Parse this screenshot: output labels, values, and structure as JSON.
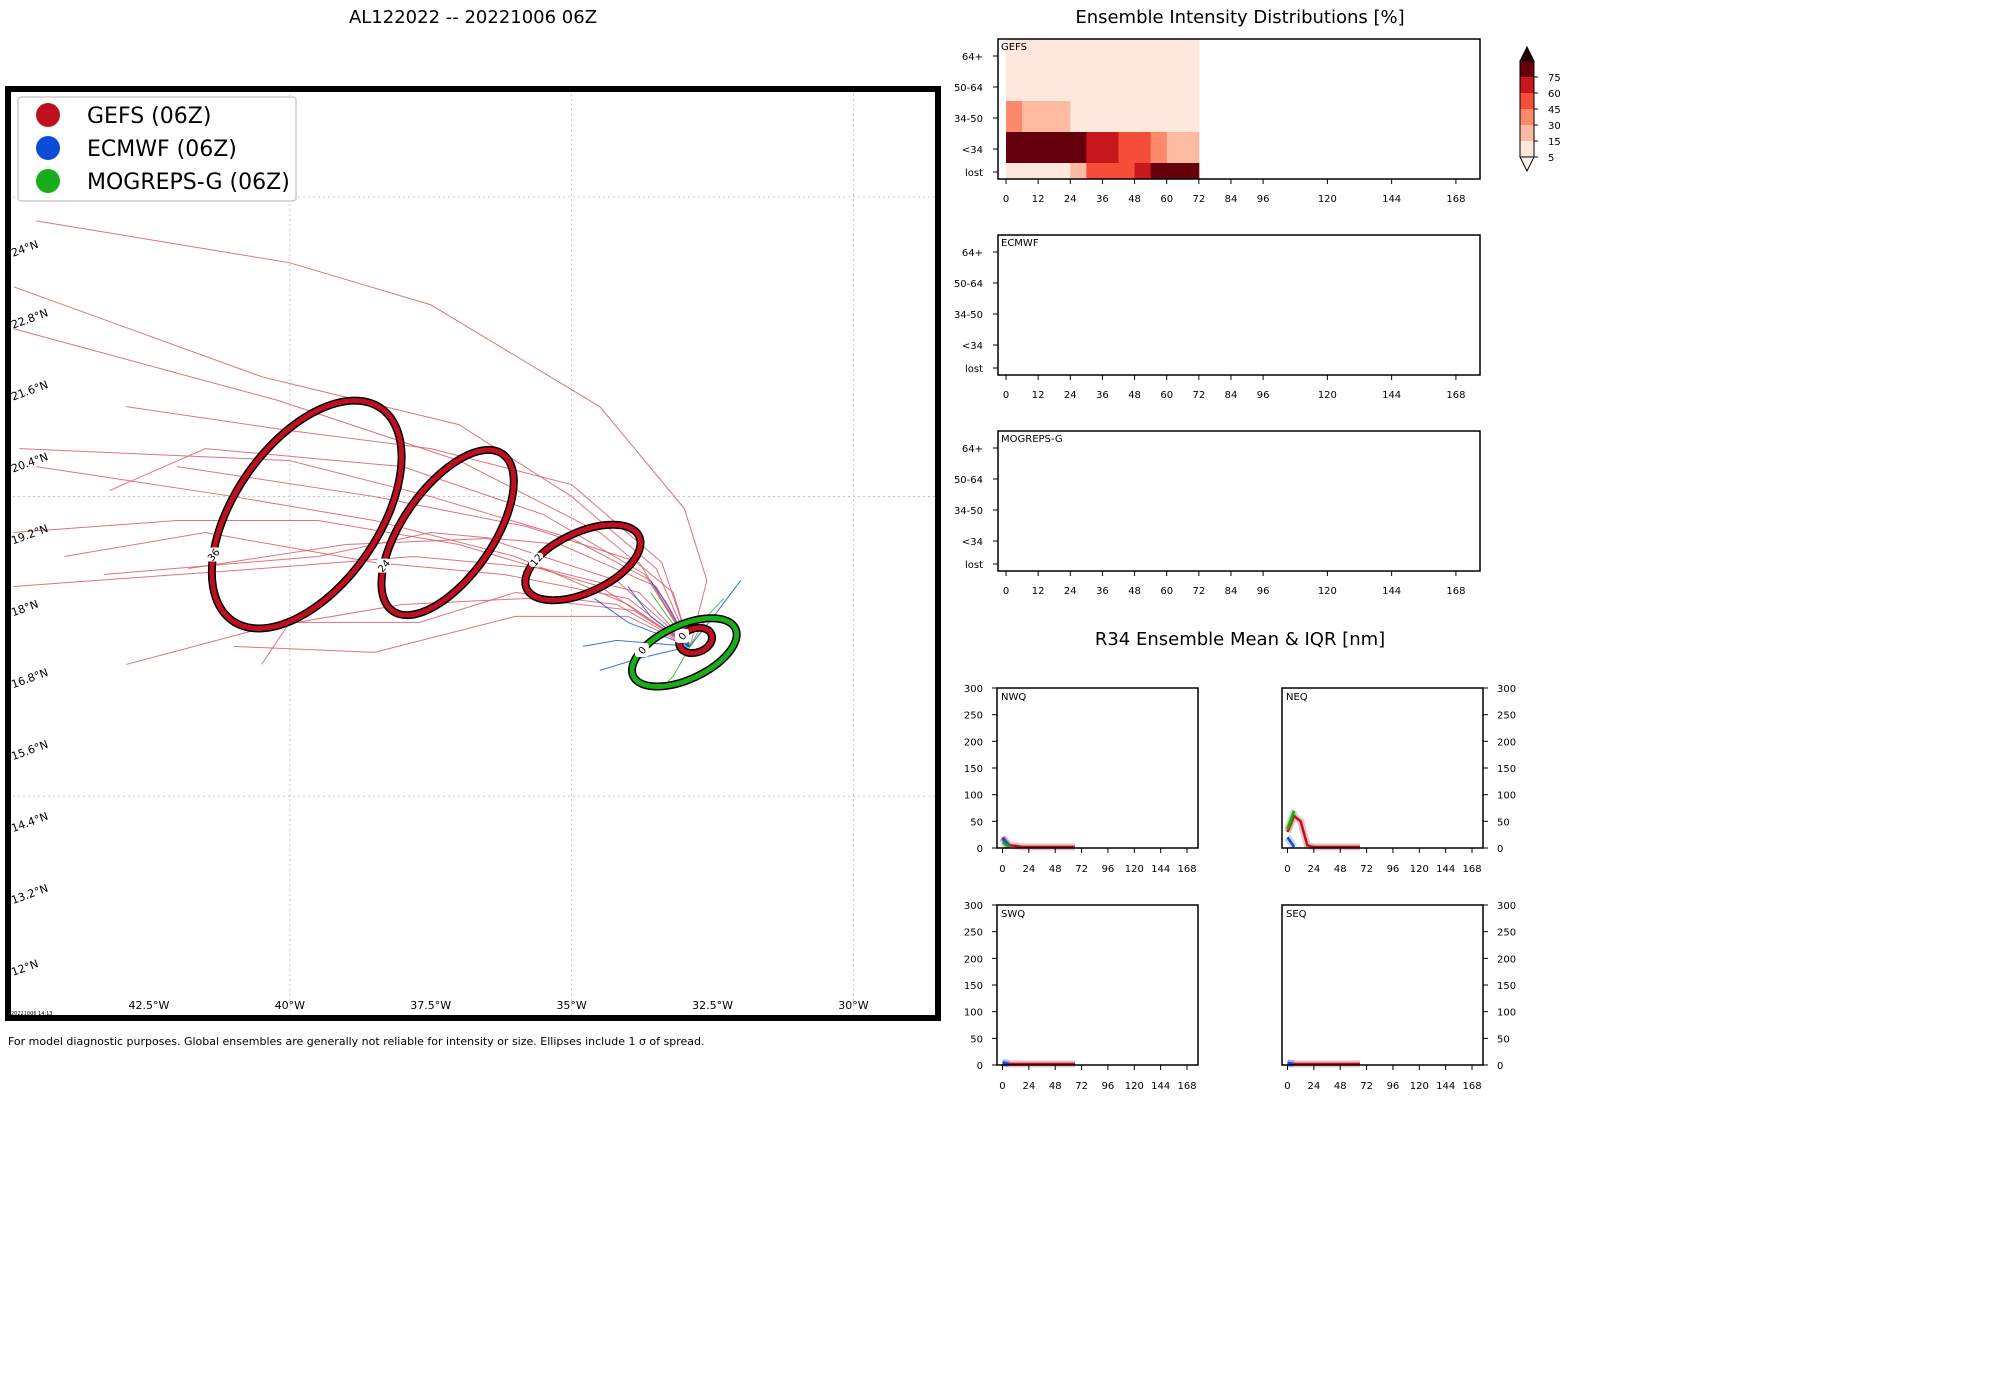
{
  "page": {
    "map_title": "AL122022 -- 20221006 06Z",
    "right_title": "Ensemble Intensity Distributions [%]",
    "r34_title": "R34 Ensemble Mean & IQR [nm]",
    "footnote": "For model diagnostic purposes. Global ensembles are generally not reliable for intensity or size. Ellipses include 1 σ of spread.",
    "timestamp": "20221006 14:13"
  },
  "colors": {
    "gefs": "#c0101f",
    "ecmwf": "#0a4bdc",
    "mogreps": "#1aad1a",
    "track": "#dc5a64"
  },
  "legend": [
    {
      "label": "GEFS (06Z)",
      "color": "#c0101f"
    },
    {
      "label": "ECMWF (06Z)",
      "color": "#0a4bdc"
    },
    {
      "label": "MOGREPS-G (06Z)",
      "color": "#1aad1a"
    }
  ],
  "chart_data": [
    {
      "type": "map",
      "title": "AL122022 -- 20221006 06Z",
      "lon_ticks": [
        "42.5°W",
        "40°W",
        "37.5°W",
        "35°W",
        "32.5°W",
        "30°W"
      ],
      "lon_values": [
        -42.5,
        -40,
        -37.5,
        -35,
        -32.5,
        -30
      ],
      "lat_ticks": [
        "12°N",
        "13.2°N",
        "14.4°N",
        "15.6°N",
        "16.8°N",
        "18°N",
        "19.2°N",
        "20.4°N",
        "21.6°N",
        "22.8°N",
        "24°N"
      ],
      "lat_values": [
        12,
        13.2,
        14.4,
        15.6,
        16.8,
        18,
        19.2,
        20.4,
        21.6,
        22.8,
        24
      ],
      "xlim": [
        -45,
        -28.5
      ],
      "ylim": [
        11.3,
        26.8
      ],
      "ellipses": [
        {
          "model": "GEFS",
          "hour": "0",
          "lon": -32.8,
          "lat": 17.6,
          "rx": 0.3,
          "ry": 0.2,
          "tilt": -20
        },
        {
          "model": "MOGREPS-G",
          "hour": "0",
          "lon": -33.0,
          "lat": 17.4,
          "rx": 1.0,
          "ry": 0.45,
          "tilt": -25
        },
        {
          "model": "GEFS",
          "hour": "12",
          "lon": -34.8,
          "lat": 18.9,
          "rx": 1.1,
          "ry": 0.5,
          "tilt": -25
        },
        {
          "model": "GEFS",
          "hour": "24",
          "lon": -37.2,
          "lat": 19.4,
          "rx": 1.7,
          "ry": 0.75,
          "tilt": -55
        },
        {
          "model": "GEFS",
          "hour": "36",
          "lon": -39.7,
          "lat": 19.7,
          "rx": 2.3,
          "ry": 1.2,
          "tilt": -55
        }
      ],
      "gefs_tracks": [
        [
          [
            -32.9,
            17.5
          ],
          [
            -34.0,
            18.2
          ],
          [
            -36.0,
            19.0
          ],
          [
            -38.5,
            19.6
          ],
          [
            -41.0,
            20.0
          ],
          [
            -44.5,
            20.5
          ]
        ],
        [
          [
            -32.9,
            17.5
          ],
          [
            -33.6,
            18.6
          ],
          [
            -35.0,
            19.3
          ],
          [
            -37.5,
            20.0
          ],
          [
            -40.0,
            20.6
          ],
          [
            -44.8,
            20.8
          ]
        ],
        [
          [
            -32.9,
            17.5
          ],
          [
            -33.8,
            18.4
          ],
          [
            -35.5,
            18.8
          ],
          [
            -37.8,
            19.0
          ],
          [
            -40.5,
            18.8
          ],
          [
            -44.9,
            18.5
          ]
        ],
        [
          [
            -32.9,
            17.5
          ],
          [
            -33.2,
            18.4
          ],
          [
            -34.5,
            19.4
          ],
          [
            -37.0,
            20.6
          ],
          [
            -40.2,
            21.6
          ],
          [
            -44.9,
            22.8
          ]
        ],
        [
          [
            -32.9,
            17.5
          ],
          [
            -33.5,
            18.5
          ],
          [
            -35.2,
            19.2
          ],
          [
            -37.5,
            19.4
          ],
          [
            -39.5,
            19.0
          ],
          [
            -43.3,
            18.7
          ]
        ],
        [
          [
            -32.9,
            17.5
          ],
          [
            -33.9,
            18.1
          ],
          [
            -35.8,
            18.3
          ],
          [
            -38.0,
            18.2
          ],
          [
            -40.5,
            17.8
          ],
          [
            -42.9,
            17.2
          ]
        ],
        [
          [
            -32.9,
            17.5
          ],
          [
            -32.6,
            18.6
          ],
          [
            -33.0,
            19.8
          ],
          [
            -34.5,
            21.5
          ],
          [
            -37.5,
            23.2
          ],
          [
            -40.0,
            23.9
          ],
          [
            -44.5,
            24.6
          ]
        ],
        [
          [
            -32.9,
            17.5
          ],
          [
            -33.5,
            18.8
          ],
          [
            -35.0,
            20.0
          ],
          [
            -37.0,
            21.2
          ],
          [
            -40.5,
            22.0
          ],
          [
            -44.9,
            23.5
          ]
        ],
        [
          [
            -32.9,
            17.5
          ],
          [
            -34.0,
            18.3
          ],
          [
            -36.2,
            18.7
          ],
          [
            -38.5,
            18.9
          ],
          [
            -41.5,
            19.4
          ],
          [
            -44.0,
            19.0
          ]
        ],
        [
          [
            -32.9,
            17.5
          ],
          [
            -33.7,
            18.7
          ],
          [
            -35.5,
            19.7
          ],
          [
            -38.0,
            20.5
          ],
          [
            -41.5,
            20.8
          ],
          [
            -43.2,
            20.1
          ]
        ],
        [
          [
            -32.9,
            17.5
          ],
          [
            -34.2,
            18.2
          ],
          [
            -36.0,
            18.4
          ],
          [
            -37.7,
            17.9
          ],
          [
            -40.0,
            17.9
          ],
          [
            -40.5,
            17.2
          ]
        ],
        [
          [
            -32.9,
            17.5
          ],
          [
            -34.0,
            18.0
          ],
          [
            -36.0,
            18.0
          ],
          [
            -38.5,
            17.4
          ],
          [
            -41.0,
            17.5
          ]
        ],
        [
          [
            -32.9,
            17.5
          ],
          [
            -33.4,
            18.9
          ],
          [
            -35.0,
            20.2
          ],
          [
            -37.5,
            20.8
          ],
          [
            -40.0,
            21.1
          ],
          [
            -42.9,
            21.5
          ]
        ],
        [
          [
            -32.9,
            17.5
          ],
          [
            -34.5,
            18.5
          ],
          [
            -37.0,
            19.2
          ],
          [
            -39.5,
            19.6
          ],
          [
            -42.0,
            19.6
          ],
          [
            -44.9,
            19.4
          ]
        ],
        [
          [
            -32.9,
            17.5
          ],
          [
            -33.8,
            18.9
          ],
          [
            -35.8,
            19.5
          ],
          [
            -38.5,
            20.0
          ],
          [
            -42.0,
            20.5
          ]
        ],
        [
          [
            -32.9,
            17.5
          ],
          [
            -34.2,
            18.6
          ],
          [
            -36.5,
            19.3
          ],
          [
            -39.0,
            19.2
          ],
          [
            -41.8,
            18.8
          ]
        ]
      ],
      "ecmwf_tracks": [
        [
          [
            -32.9,
            17.5
          ],
          [
            -33.6,
            18.0
          ],
          [
            -34.0,
            18.5
          ]
        ],
        [
          [
            -32.9,
            17.5
          ],
          [
            -34.0,
            17.9
          ],
          [
            -34.6,
            18.3
          ]
        ],
        [
          [
            -32.9,
            17.5
          ],
          [
            -33.8,
            17.3
          ],
          [
            -34.5,
            17.1
          ]
        ],
        [
          [
            -32.9,
            17.5
          ],
          [
            -34.2,
            17.6
          ],
          [
            -34.8,
            17.5
          ]
        ],
        [
          [
            -32.9,
            17.5
          ],
          [
            -33.3,
            18.2
          ],
          [
            -33.6,
            18.6
          ]
        ],
        [
          [
            -32.9,
            17.5
          ],
          [
            -32.4,
            18.1
          ],
          [
            -32.0,
            18.6
          ]
        ]
      ],
      "mogreps_tracks": [
        [
          [
            -32.9,
            17.5
          ],
          [
            -32.6,
            18.0
          ],
          [
            -32.3,
            18.3
          ]
        ],
        [
          [
            -32.9,
            17.5
          ],
          [
            -33.3,
            18.0
          ],
          [
            -33.6,
            18.4
          ]
        ],
        [
          [
            -32.9,
            17.5
          ],
          [
            -33.2,
            17.0
          ],
          [
            -33.4,
            16.8
          ]
        ]
      ]
    },
    {
      "type": "heatmap",
      "panel": "GEFS",
      "x_ticks": [
        0,
        12,
        24,
        36,
        48,
        60,
        72,
        84,
        96,
        120,
        144,
        168
      ],
      "y_categories": [
        "lost",
        "<34",
        "34-50",
        "50-64",
        "64+"
      ],
      "time_bins": [
        0,
        6,
        12,
        18,
        24,
        30,
        36,
        42,
        48,
        54,
        60,
        66,
        72
      ],
      "values": {
        "64+": [
          5,
          5,
          5,
          5,
          5,
          5,
          5,
          5,
          5,
          5,
          5,
          5
        ],
        "50-64": [
          5,
          5,
          5,
          5,
          5,
          5,
          5,
          5,
          5,
          5,
          5,
          5
        ],
        "34-50": [
          35,
          15,
          15,
          15,
          5,
          5,
          5,
          5,
          5,
          5,
          5,
          5
        ],
        "<34": [
          80,
          80,
          80,
          80,
          80,
          65,
          65,
          55,
          45,
          30,
          15,
          15
        ],
        "lost": [
          5,
          5,
          5,
          5,
          15,
          45,
          45,
          55,
          65,
          80,
          80,
          80
        ]
      }
    },
    {
      "type": "heatmap",
      "panel": "ECMWF",
      "x_ticks": [
        0,
        12,
        24,
        36,
        48,
        60,
        72,
        84,
        96,
        120,
        144,
        168
      ],
      "y_categories": [
        "lost",
        "<34",
        "34-50",
        "50-64",
        "64+"
      ],
      "values": {}
    },
    {
      "type": "heatmap",
      "panel": "MOGREPS-G",
      "x_ticks": [
        0,
        12,
        24,
        36,
        48,
        60,
        72,
        84,
        96,
        120,
        144,
        168
      ],
      "y_categories": [
        "lost",
        "<34",
        "34-50",
        "50-64",
        "64+"
      ],
      "values": {}
    },
    {
      "type": "colorbar",
      "ticks": [
        5,
        15,
        30,
        45,
        60,
        75
      ],
      "colors": [
        "#fee8dd",
        "#fcbba1",
        "#fc8a6a",
        "#f44d38",
        "#c9181d",
        "#67000d"
      ]
    },
    {
      "type": "line",
      "title": "R34 Ensemble Mean & IQR [nm]",
      "x_ticks": [
        0,
        24,
        48,
        72,
        96,
        120,
        144,
        168
      ],
      "y_ticks": [
        0,
        50,
        100,
        150,
        200,
        250,
        300
      ],
      "ylim": [
        0,
        300
      ],
      "panels": [
        {
          "name": "NWQ",
          "series": [
            {
              "model": "GEFS",
              "x": [
                0,
                6,
                12,
                18,
                24,
                36,
                48,
                60,
                66
              ],
              "y": [
                20,
                5,
                4,
                2,
                2,
                2,
                2,
                2,
                2
              ]
            },
            {
              "model": "ECMWF",
              "x": [
                0,
                6
              ],
              "y": [
                18,
                2
              ]
            },
            {
              "model": "MOGREPS-G",
              "x": [
                0,
                6
              ],
              "y": [
                10,
                3
              ]
            }
          ]
        },
        {
          "name": "NEQ",
          "series": [
            {
              "model": "GEFS",
              "x": [
                0,
                6,
                12,
                18,
                24,
                36,
                48,
                60,
                66
              ],
              "y": [
                30,
                60,
                50,
                5,
                2,
                2,
                2,
                2,
                2
              ]
            },
            {
              "model": "ECMWF",
              "x": [
                0,
                6
              ],
              "y": [
                20,
                2
              ]
            },
            {
              "model": "MOGREPS-G",
              "x": [
                0,
                6
              ],
              "y": [
                35,
                70
              ]
            }
          ]
        },
        {
          "name": "SWQ",
          "series": [
            {
              "model": "GEFS",
              "x": [
                0,
                6,
                12,
                24,
                36,
                48,
                60,
                66
              ],
              "y": [
                3,
                2,
                2,
                2,
                2,
                2,
                2,
                2
              ]
            },
            {
              "model": "ECMWF",
              "x": [
                0,
                6
              ],
              "y": [
                5,
                2
              ]
            }
          ]
        },
        {
          "name": "SEQ",
          "series": [
            {
              "model": "GEFS",
              "x": [
                0,
                6,
                12,
                24,
                36,
                48,
                60,
                66
              ],
              "y": [
                3,
                2,
                2,
                2,
                2,
                2,
                2,
                2
              ]
            },
            {
              "model": "ECMWF",
              "x": [
                0,
                6
              ],
              "y": [
                4,
                2
              ]
            }
          ]
        }
      ]
    }
  ]
}
